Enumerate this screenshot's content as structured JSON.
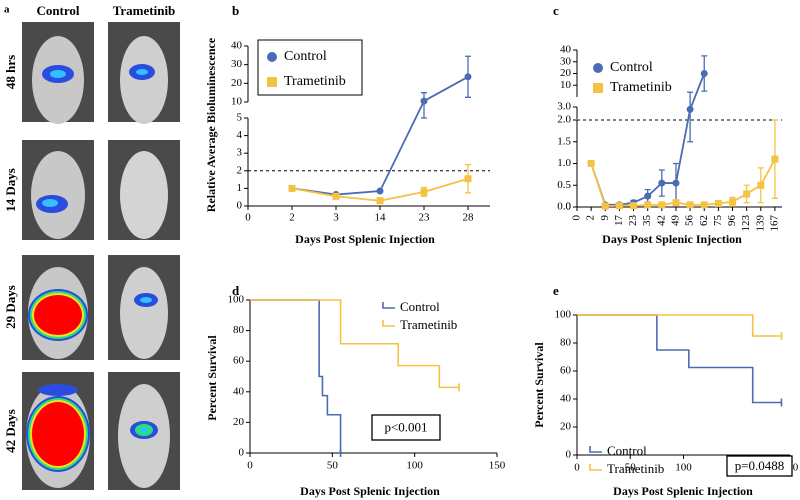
{
  "panel_a": {
    "label": "a",
    "columns": [
      "Control",
      "Trametinib"
    ],
    "rows": [
      "48 hrs",
      "14 Days",
      "29 Days",
      "42 Days"
    ]
  },
  "chart_data": [
    {
      "type": "line",
      "panel": "b",
      "xlabel": "Days Post Splenic Injection",
      "ylabel": "Relative Average Bioluminescence",
      "categories": [
        "0",
        "2",
        "3",
        "14",
        "23",
        "28"
      ],
      "y_segments": [
        {
          "ylim": [
            0,
            5
          ],
          "yticks": [
            0,
            1,
            2,
            3,
            4,
            5
          ]
        },
        {
          "ylim": [
            10,
            40
          ],
          "yticks": [
            10,
            20,
            30,
            40
          ]
        }
      ],
      "reference_line": 2,
      "legend": "upper left",
      "series": [
        {
          "name": "Control",
          "color": "#4a6cb3",
          "marker": "circle",
          "values": [
            null,
            1.0,
            0.65,
            0.85,
            10.5,
            23.5
          ],
          "errors": [
            null,
            0.1,
            0.05,
            0.05,
            4.5,
            11
          ]
        },
        {
          "name": "Trametinib",
          "color": "#f5c343",
          "marker": "square",
          "values": [
            null,
            1.0,
            0.55,
            0.3,
            0.8,
            1.55
          ],
          "errors": [
            null,
            0.1,
            0.05,
            0.05,
            0.25,
            0.8
          ]
        }
      ]
    },
    {
      "type": "line",
      "panel": "c",
      "xlabel": "Days Post Splenic Injection",
      "categories": [
        "0",
        "2",
        "9",
        "17",
        "23",
        "35",
        "42",
        "49",
        "56",
        "62",
        "75",
        "96",
        "123",
        "139",
        "167"
      ],
      "y_segments": [
        {
          "ylim": [
            0,
            2
          ],
          "yticks": [
            {
              "value": 0,
              "label": "0.0"
            },
            {
              "value": 0.5,
              "label": "0.5"
            },
            {
              "value": 1,
              "label": "1.0"
            },
            {
              "value": 1.5,
              "label": "1.5"
            },
            {
              "value": 2,
              "label": "2.0"
            }
          ]
        },
        {
          "ylim": [
            2,
            3
          ],
          "yticks": [
            {
              "value": 3,
              "label": "3.0"
            }
          ]
        },
        {
          "ylim": [
            0,
            40
          ],
          "yticks": [
            0,
            10,
            20,
            30,
            40
          ]
        }
      ],
      "reference_line": 2,
      "legend": "upper left",
      "series": [
        {
          "name": "Control",
          "color": "#4a6cb3",
          "marker": "circle",
          "values": [
            null,
            1.0,
            0.05,
            0.05,
            0.1,
            0.25,
            0.55,
            0.55,
            2.8,
            20,
            null,
            null,
            null,
            null,
            null
          ],
          "errors": [
            null,
            0.05,
            0.02,
            0.02,
            0.05,
            0.15,
            0.3,
            0.45,
            1.3,
            15,
            null,
            null,
            null,
            null,
            null
          ]
        },
        {
          "name": "Trametinib",
          "color": "#f5c343",
          "marker": "square",
          "values": [
            null,
            1.0,
            0.02,
            0.03,
            0.03,
            0.05,
            0.05,
            0.1,
            0.05,
            0.05,
            0.08,
            0.12,
            0.3,
            0.5,
            1.1
          ],
          "errors": [
            null,
            0.05,
            0.02,
            0.02,
            0.02,
            0.03,
            0.03,
            0.05,
            0.03,
            0.03,
            0.05,
            0.1,
            0.2,
            0.4,
            0.9
          ]
        }
      ]
    },
    {
      "type": "step",
      "panel": "d",
      "xlabel": "Days Post Splenic Injection",
      "ylabel": "Percent Survival",
      "xlim": [
        0,
        150
      ],
      "xticks": [
        0,
        50,
        100,
        150
      ],
      "ylim": [
        0,
        100
      ],
      "yticks": [
        0,
        20,
        40,
        60,
        80,
        100
      ],
      "annotation": "p<0.001",
      "legend": "upper right",
      "series": [
        {
          "name": "Control",
          "color": "#4a6cb3",
          "x": [
            0,
            42,
            44,
            47,
            55
          ],
          "values": [
            100,
            50,
            37.5,
            25,
            0
          ]
        },
        {
          "name": "Trametinib",
          "color": "#f5c343",
          "x": [
            0,
            55,
            90,
            115,
            127
          ],
          "values": [
            100,
            71.4,
            57.1,
            42.9,
            42.9
          ]
        }
      ]
    },
    {
      "type": "step",
      "panel": "e",
      "xlabel": "Days Post Splenic Injection",
      "ylabel": "Percent Survival",
      "xlim": [
        0,
        200
      ],
      "xticks": [
        0,
        50,
        100,
        150,
        200
      ],
      "ylim": [
        0,
        100
      ],
      "yticks": [
        0,
        20,
        40,
        60,
        80,
        100
      ],
      "annotation": "p=0.0488",
      "legend": "lower left",
      "series": [
        {
          "name": "Control",
          "color": "#4a6cb3",
          "x": [
            0,
            75,
            105,
            165,
            192
          ],
          "values": [
            100,
            75,
            62.5,
            37.5,
            37.5
          ]
        },
        {
          "name": "Trametinib",
          "color": "#f5c343",
          "x": [
            0,
            165,
            192
          ],
          "values": [
            100,
            85,
            85
          ]
        }
      ]
    }
  ]
}
